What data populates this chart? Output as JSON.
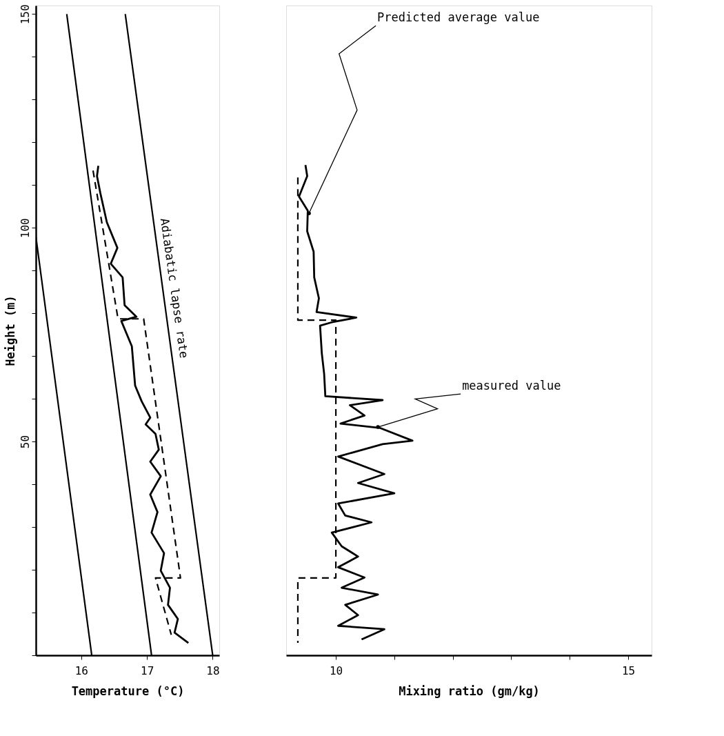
{
  "chart_data": [
    {
      "type": "line",
      "xlabel": "Temperature (°C)",
      "ylabel": "Height (m)",
      "xlim": [
        15.31,
        18.1
      ],
      "xticks": [
        16,
        17,
        18
      ],
      "ylim": [
        0,
        152
      ],
      "yticks": [
        {
          "value": 0,
          "label": null
        },
        {
          "value": 10,
          "label": null
        },
        {
          "value": 20,
          "label": null
        },
        {
          "value": 30,
          "label": null
        },
        {
          "value": 40,
          "label": null
        },
        50,
        {
          "value": 60,
          "label": null
        },
        {
          "value": 70,
          "label": null
        },
        {
          "value": 80,
          "label": null
        },
        {
          "value": 90,
          "label": null
        },
        100,
        {
          "value": 110,
          "label": null
        },
        {
          "value": 120,
          "label": null
        },
        {
          "value": 130,
          "label": null
        },
        {
          "value": 140,
          "label": null
        },
        150
      ],
      "annotations": [
        "Adiabatic lapse rate"
      ],
      "series": [
        {
          "color": "#000000",
          "x": [
            15.31,
            16.16
          ],
          "values": [
            98,
            0
          ]
        },
        {
          "color": "#000000",
          "x": [
            15.78,
            17.07
          ],
          "values": [
            150,
            0
          ]
        },
        {
          "color": "#000000",
          "x": [
            16.67,
            18.0
          ],
          "values": [
            150,
            0
          ]
        },
        {
          "color": "#000000",
          "x": [
            16.26,
            16.24,
            16.29,
            16.39,
            16.55,
            16.45,
            16.63,
            16.66,
            16.84,
            16.61,
            16.77,
            16.82,
            16.92,
            17.05,
            16.98,
            17.13,
            17.18,
            17.05,
            17.21,
            17.05,
            17.16,
            17.07,
            17.26,
            17.21,
            17.35,
            17.32,
            17.47,
            17.42,
            17.63
          ],
          "values": [
            114.5,
            112.1,
            108.2,
            101.3,
            95.3,
            91.6,
            88.4,
            81.9,
            79.2,
            78.2,
            72.3,
            63.1,
            59.4,
            55.6,
            54.0,
            51.8,
            48.1,
            45.3,
            41.9,
            37.6,
            33.5,
            28.7,
            23.9,
            19.8,
            15.8,
            11.8,
            8.5,
            5.3,
            2.9
          ]
        },
        {
          "color": "#000000",
          "line_style": "dashed",
          "x": [
            16.18,
            16.56,
            16.95,
            17.51,
            17.13,
            17.37
          ],
          "values": [
            113.4,
            78.7,
            78.7,
            18.1,
            18.1,
            4.8
          ]
        }
      ]
    },
    {
      "type": "line",
      "xlabel": "Mixing ratio (gm/kg)",
      "xlim": [
        9.15,
        15.4
      ],
      "xticks": [
        10,
        {
          "value": 11,
          "label": null
        },
        {
          "value": 12,
          "label": null
        },
        {
          "value": 13,
          "label": null
        },
        {
          "value": 14,
          "label": null
        },
        15
      ],
      "ylim": [
        0,
        152
      ],
      "tick_labels": "x",
      "annotations": [
        {
          "text": "Predicted average value",
          "x": 9.54,
          "y": 103.4
        },
        {
          "text": "measured value",
          "x": 10.72,
          "y": 53.4
        }
      ],
      "series": [
        {
          "color": "#000000",
          "x": [
            9.48,
            9.51,
            9.37,
            9.52,
            9.51,
            9.62,
            9.63,
            9.71,
            9.67,
            10.35,
            9.93,
            9.73,
            9.76,
            9.8,
            9.82,
            10.8,
            10.24,
            10.49,
            10.08,
            10.75,
            11.31,
            10.8,
            10.04,
            10.83,
            10.38,
            11.0,
            10.04,
            10.16,
            10.61,
            9.93,
            10.1,
            10.38,
            10.04,
            10.49,
            10.1,
            10.72,
            10.16,
            10.38,
            10.04,
            10.83,
            10.44
          ],
          "values": [
            114.7,
            112.1,
            107.3,
            104.0,
            99.2,
            94.4,
            88.4,
            83.5,
            80.3,
            79.0,
            77.9,
            77.1,
            70.6,
            65.8,
            60.6,
            59.7,
            58.5,
            56.1,
            54.2,
            53.2,
            50.2,
            49.4,
            46.5,
            42.4,
            40.3,
            37.9,
            35.5,
            32.7,
            31.1,
            28.7,
            25.5,
            23.1,
            20.6,
            18.2,
            15.8,
            14.2,
            11.8,
            9.4,
            6.9,
            6.1,
            3.7
          ]
        },
        {
          "color": "#000000",
          "line_style": "dashed",
          "x": [
            9.35,
            9.35,
            10.0,
            10.0,
            9.35,
            9.35
          ],
          "values": [
            111.8,
            78.4,
            78.4,
            18.1,
            18.1,
            2.9
          ]
        }
      ]
    }
  ]
}
